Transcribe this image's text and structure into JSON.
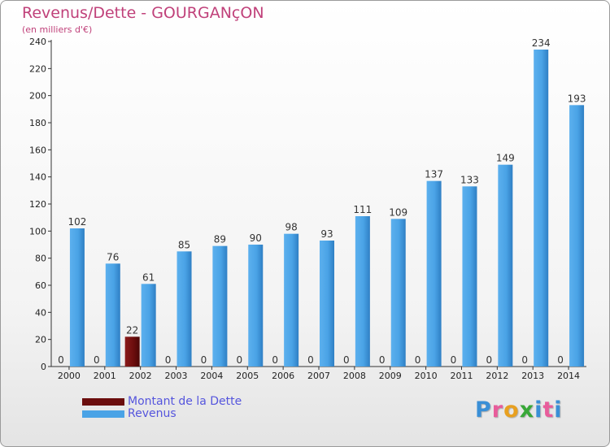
{
  "title": "Revenus/Dette - GOURGANçON",
  "subtitle": "(en milliers d'€)",
  "logo": {
    "letters": [
      "P",
      "r",
      "o",
      "x",
      "i",
      "t",
      "i"
    ],
    "colors": [
      "#3a8fd6",
      "#e85c9b",
      "#e8a020",
      "#38a838",
      "#3a8fd6",
      "#e85c9b",
      "#3a8fd6"
    ]
  },
  "legend": [
    {
      "label": "Montant de la Dette",
      "color": "#6b0d0d"
    },
    {
      "label": "Revenus",
      "color": "#4aa3e6"
    }
  ],
  "chart_data": {
    "type": "bar",
    "title": "Revenus/Dette - GOURGANçON",
    "ylabel": "(en milliers d'€)",
    "xlabel": "",
    "ylim": [
      0,
      240
    ],
    "yticks": [
      0,
      20,
      40,
      60,
      80,
      100,
      120,
      140,
      160,
      180,
      200,
      220,
      240
    ],
    "categories": [
      "2000",
      "2001",
      "2002",
      "2003",
      "2004",
      "2005",
      "2006",
      "2007",
      "2008",
      "2009",
      "2010",
      "2011",
      "2012",
      "2013",
      "2014"
    ],
    "series": [
      {
        "name": "Montant de la Dette",
        "color": "#6b0d0d",
        "values": [
          0,
          0,
          22,
          0,
          0,
          0,
          0,
          0,
          0,
          0,
          0,
          0,
          0,
          0,
          0
        ]
      },
      {
        "name": "Revenus",
        "color": "#4aa3e6",
        "values": [
          102,
          76,
          61,
          85,
          89,
          90,
          98,
          93,
          111,
          109,
          137,
          133,
          149,
          234,
          193
        ]
      }
    ],
    "grid": false,
    "legend_position": "bottom-left"
  }
}
